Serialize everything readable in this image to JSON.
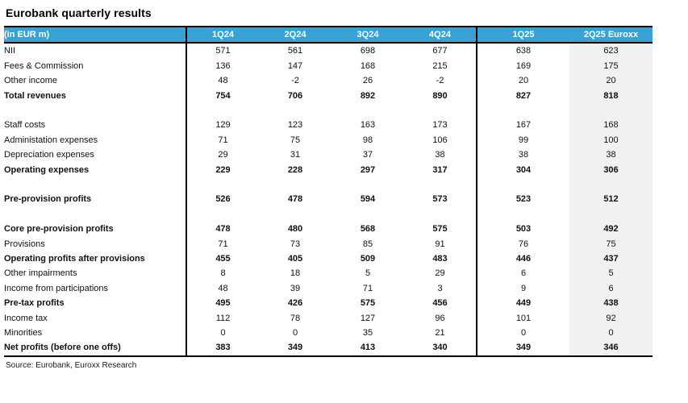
{
  "title": "Eurobank quarterly results",
  "source": "Source: Eurobank, Euroxx Research",
  "colors": {
    "header_bg": "#3AA2D2",
    "header_text": "#FFFFFF",
    "highlight_column_bg": "#F1F1F1",
    "rule": "#000000"
  },
  "table": {
    "unit_label": "(in EUR m)",
    "columns": [
      "1Q24",
      "2Q24",
      "3Q24",
      "4Q24",
      "1Q25",
      "2Q25 Euroxx"
    ],
    "rows": [
      {
        "label": "NII",
        "bold": false,
        "values": [
          "571",
          "561",
          "698",
          "677",
          "638",
          "623"
        ]
      },
      {
        "label": "Fees & Commission",
        "bold": false,
        "values": [
          "136",
          "147",
          "168",
          "215",
          "169",
          "175"
        ]
      },
      {
        "label": "Other income",
        "bold": false,
        "values": [
          "48",
          "-2",
          "26",
          "-2",
          "20",
          "20"
        ]
      },
      {
        "label": "Total revenues",
        "bold": true,
        "values": [
          "754",
          "706",
          "892",
          "890",
          "827",
          "818"
        ]
      },
      {
        "blank": true
      },
      {
        "label": "Staff costs",
        "bold": false,
        "values": [
          "129",
          "123",
          "163",
          "173",
          "167",
          "168"
        ]
      },
      {
        "label": "Administation expenses",
        "bold": false,
        "values": [
          "71",
          "75",
          "98",
          "106",
          "99",
          "100"
        ]
      },
      {
        "label": "Depreciation expenses",
        "bold": false,
        "values": [
          "29",
          "31",
          "37",
          "38",
          "38",
          "38"
        ]
      },
      {
        "label": "Operating expenses",
        "bold": true,
        "values": [
          "229",
          "228",
          "297",
          "317",
          "304",
          "306"
        ]
      },
      {
        "blank": true
      },
      {
        "label": "Pre-provision profits",
        "bold": true,
        "values": [
          "526",
          "478",
          "594",
          "573",
          "523",
          "512"
        ]
      },
      {
        "blank": true
      },
      {
        "label": "Core pre-provision profits",
        "bold": true,
        "values": [
          "478",
          "480",
          "568",
          "575",
          "503",
          "492"
        ]
      },
      {
        "label": "Provisions",
        "bold": false,
        "values": [
          "71",
          "73",
          "85",
          "91",
          "76",
          "75"
        ]
      },
      {
        "label": "Operating profits after provisions",
        "bold": true,
        "values": [
          "455",
          "405",
          "509",
          "483",
          "446",
          "437"
        ]
      },
      {
        "label": "Other impairments",
        "bold": false,
        "values": [
          "8",
          "18",
          "5",
          "29",
          "6",
          "5"
        ]
      },
      {
        "label": "Income from participations",
        "bold": false,
        "values": [
          "48",
          "39",
          "71",
          "3",
          "9",
          "6"
        ]
      },
      {
        "label": "Pre-tax profits",
        "bold": true,
        "values": [
          "495",
          "426",
          "575",
          "456",
          "449",
          "438"
        ]
      },
      {
        "label": "Income tax",
        "bold": false,
        "values": [
          "112",
          "78",
          "127",
          "96",
          "101",
          "92"
        ]
      },
      {
        "label": "Minorities",
        "bold": false,
        "values": [
          "0",
          "0",
          "35",
          "21",
          "0",
          "0"
        ]
      },
      {
        "label": "Net profits (before one offs)",
        "bold": true,
        "values": [
          "383",
          "349",
          "413",
          "340",
          "349",
          "346"
        ]
      }
    ]
  }
}
